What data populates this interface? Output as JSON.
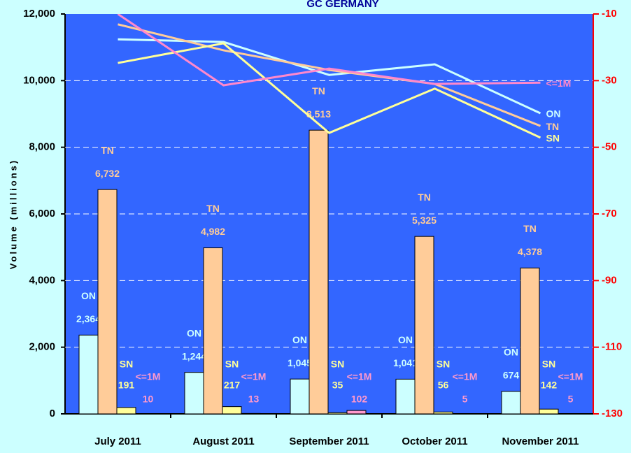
{
  "chart_data": {
    "type": "bar",
    "title": "GC GERMANY",
    "y_label": "Volume (millions)",
    "categories": [
      "July 2011",
      "August 2011",
      "September 2011",
      "October 2011",
      "November 2011"
    ],
    "ylim": [
      0,
      12000
    ],
    "yticks": [
      0,
      {
        "value": 2000,
        "label": "2,000"
      },
      {
        "value": 4000,
        "label": "4,000"
      },
      {
        "value": 6000,
        "label": "6,000"
      },
      {
        "value": 8000,
        "label": "8,000"
      },
      {
        "value": 10000,
        "label": "10,000"
      },
      {
        "value": 12000,
        "label": "12,000"
      }
    ],
    "y2lim": [
      -130,
      -10
    ],
    "y2ticks": [
      -130,
      -110,
      -90,
      -70,
      -50,
      -30,
      -10
    ],
    "grid": true,
    "series": [
      {
        "name": "ON",
        "color": "#ccffff",
        "values": [
          2364,
          1244,
          1045,
          1041,
          674
        ],
        "value_labels": [
          "2,364",
          "1,244",
          "1,045",
          "1,041",
          "674"
        ]
      },
      {
        "name": "TN",
        "color": "#ffcc99",
        "values": [
          6732,
          4982,
          8513,
          5325,
          4378
        ],
        "value_labels": [
          "6,732",
          "4,982",
          "8,513",
          "5,325",
          "4,378"
        ]
      },
      {
        "name": "SN",
        "color": "#ffff99",
        "values": [
          191,
          217,
          35,
          56,
          142
        ]
      },
      {
        "name": "<=1M",
        "color": "#ff99cc",
        "values": [
          10,
          13,
          102,
          5,
          5
        ]
      },
      {
        "name": "ON",
        "color": "#ccffff",
        "type": "line",
        "axis": "y2",
        "values": [
          -17.6,
          -18.4,
          -28.3,
          -25.1,
          -39.8
        ]
      },
      {
        "name": "TN",
        "color": "#ffcc99",
        "type": "line",
        "axis": "y2",
        "values": [
          -13.1,
          -20.9,
          -26.8,
          -31,
          -43.6
        ]
      },
      {
        "name": "SN",
        "color": "#ffff99",
        "type": "line",
        "axis": "y2",
        "values": [
          -24.7,
          -18.8,
          -45.7,
          -32.4,
          -47.1
        ]
      },
      {
        "name": "<=1M",
        "color": "#ff88cc",
        "type": "line",
        "axis": "y2",
        "values": [
          -10,
          -31.4,
          -26.4,
          -31,
          -30.6
        ]
      }
    ]
  }
}
